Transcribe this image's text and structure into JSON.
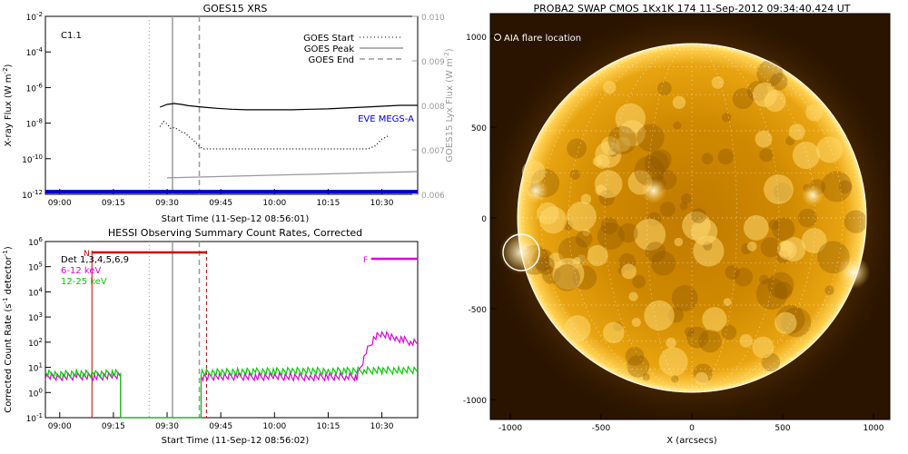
{
  "goes": {
    "title": "GOES15 XRS",
    "flare_class": "C1.1",
    "xlabel": "Start Time (11-Sep-12 08:56:01)",
    "ylabel": "X-ray Flux (W m",
    "ylabel_sup": "-2",
    "ylabel_end": ")",
    "y2label": "GOES15 Lyx Flux (W m",
    "y2label_sup": "-2",
    "y2label_end": ")",
    "legend": [
      {
        "label": "GOES Start",
        "style": "dotted"
      },
      {
        "label": "GOES Peak",
        "style": "solid"
      },
      {
        "label": "GOES End",
        "style": "dashed"
      }
    ],
    "eve_label": "EVE MEGS-A",
    "eve_color": "#0000cc"
  },
  "hessi": {
    "title": "HESSI Observing Summary Count Rates, Corrected",
    "xlabel": "Start Time (11-Sep-12 08:56:02)",
    "ylabel": "Corrected Count Rate (s",
    "ylabel_sup": "-1",
    "ylabel_mid": " detector",
    "ylabel_sup2": "-1",
    "ylabel_end": ")",
    "legend": [
      {
        "label": "Det 1,3,4,5,6,9",
        "color": "#000000"
      },
      {
        "label": "6-12 keV",
        "color": "#dd00dd"
      },
      {
        "label": "12-25 keV",
        "color": "#00cc00"
      }
    ],
    "n_label": "N",
    "f_label": "F",
    "night_color": "#cc0000",
    "flare_flag_color": "#dd00dd"
  },
  "swap": {
    "title": "PROBA2 SWAP CMOS 1Kx1K 174 11-Sep-2012 09:34:40.424 UT",
    "aia_label": "AIA flare location",
    "xlabel": "X (arcsecs)",
    "x_ticks": [
      "-1000",
      "-500",
      "0",
      "500",
      "1000"
    ],
    "y_ticks": [
      "1000",
      "500",
      "0",
      "-500",
      "-1000"
    ]
  },
  "chart_data": [
    {
      "type": "line",
      "title": "GOES15 XRS",
      "xlabel": "Start Time (11-Sep-12 08:56:01)",
      "ylabel": "X-ray Flux (W m^-2)",
      "y2label": "GOES15 Lyx Flux (W m^-2)",
      "x_ticks": [
        "09:00",
        "09:15",
        "09:30",
        "09:45",
        "10:00",
        "10:15",
        "10:30"
      ],
      "xlim_min": [
        -4,
        100
      ],
      "y_ticks": [
        "10^-12",
        "10^-10",
        "10^-8",
        "10^-6",
        "10^-4",
        "10^-2"
      ],
      "ylim_log10": [
        -12,
        -2
      ],
      "y2_ticks": [
        "0.006",
        "0.007",
        "0.008",
        "0.009",
        "0.010"
      ],
      "y2lim": [
        0.006,
        0.01
      ],
      "annotation": "C1.1",
      "vlines_min": {
        "start": 25,
        "peak": 31.5,
        "end": 39
      },
      "series": [
        {
          "name": "",
          "axis": "left",
          "style": "solid",
          "color": "#000000",
          "x": [
            28,
            30,
            32,
            34,
            36,
            40,
            44,
            48,
            52,
            56,
            60,
            65,
            70,
            75,
            80,
            85,
            90,
            95,
            100
          ],
          "y": [
            -7.1,
            -6.95,
            -6.9,
            -6.95,
            -7.02,
            -7.1,
            -7.17,
            -7.22,
            -7.25,
            -7.25,
            -7.25,
            -7.25,
            -7.22,
            -7.2,
            -7.15,
            -7.1,
            -7.05,
            -7.0,
            -7.0
          ]
        },
        {
          "name": "",
          "axis": "left",
          "style": "dotted",
          "color": "#000000",
          "x": [
            28,
            29,
            30,
            31,
            32,
            33,
            34,
            35,
            36,
            37,
            38,
            39,
            40,
            45,
            50,
            60,
            70,
            80,
            86,
            88,
            90,
            92
          ],
          "y": [
            -8.2,
            -7.9,
            -8.05,
            -8.3,
            -8.25,
            -8.35,
            -8.5,
            -8.55,
            -8.75,
            -8.9,
            -9.1,
            -9.3,
            -9.45,
            -9.45,
            -9.45,
            -9.45,
            -9.45,
            -9.45,
            -9.45,
            -9.3,
            -8.9,
            -8.7
          ]
        },
        {
          "name": "",
          "axis": "right",
          "style": "solid",
          "color": "#999999",
          "x": [
            30,
            35,
            40,
            45,
            50,
            55,
            60,
            65,
            70,
            75,
            80,
            85,
            90,
            95,
            100
          ],
          "y": [
            0.00637,
            0.00638,
            0.00639,
            0.0064,
            0.00641,
            0.00642,
            0.00643,
            0.00644,
            0.00645,
            0.00646,
            0.00647,
            0.00648,
            0.00649,
            0.0065,
            0.00651
          ]
        },
        {
          "name": "EVE MEGS-A",
          "axis": "left",
          "style": "solid",
          "color": "#0000cc",
          "x": [
            -4,
            100
          ],
          "y": [
            -11.85,
            -11.85
          ]
        }
      ]
    },
    {
      "type": "line",
      "title": "HESSI Observing Summary Count Rates, Corrected",
      "xlabel": "Start Time (11-Sep-12 08:56:02)",
      "ylabel": "Corrected Count Rate (s^-1 detector^-1)",
      "x_ticks": [
        "09:00",
        "09:15",
        "09:30",
        "09:45",
        "10:00",
        "10:15",
        "10:30"
      ],
      "xlim_min": [
        -4,
        100
      ],
      "y_ticks": [
        "10^-1",
        "10^0",
        "10^1",
        "10^2",
        "10^3",
        "10^4",
        "10^5",
        "10^6"
      ],
      "ylim_log10": [
        -1,
        6
      ],
      "vlines_min": {
        "night_start": 9,
        "start": 25,
        "peak": 31.5,
        "end": 39,
        "night_end": 41
      },
      "night_bar_min": [
        9,
        41
      ],
      "flare_bar_min": [
        87,
        100
      ],
      "series": [
        {
          "name": "6-12 keV",
          "color": "#dd00dd",
          "x": [
            -4,
            0,
            5,
            10,
            15,
            17,
            17,
            39.5,
            39.5,
            40,
            45,
            50,
            55,
            60,
            65,
            70,
            75,
            80,
            83,
            84,
            86,
            88,
            90,
            92,
            94,
            96,
            98,
            100
          ],
          "y": [
            0.65,
            0.62,
            0.64,
            0.63,
            0.65,
            0.65,
            -1,
            -1,
            0.6,
            0.62,
            0.64,
            0.63,
            0.62,
            0.63,
            0.62,
            0.61,
            0.62,
            0.63,
            0.62,
            1.0,
            1.7,
            2.2,
            2.3,
            2.25,
            2.15,
            2.1,
            2.0,
            1.95
          ]
        },
        {
          "name": "12-25 keV",
          "color": "#00cc00",
          "x": [
            -4,
            0,
            5,
            10,
            15,
            17,
            17,
            39.5,
            39.5,
            40,
            45,
            50,
            55,
            60,
            65,
            70,
            75,
            80,
            85,
            90,
            95,
            100
          ],
          "y": [
            0.75,
            0.72,
            0.76,
            0.73,
            0.77,
            0.75,
            -1,
            -1,
            0.75,
            0.78,
            0.8,
            0.82,
            0.83,
            0.84,
            0.85,
            0.86,
            0.85,
            0.86,
            0.87,
            0.88,
            0.88,
            0.9
          ]
        }
      ]
    }
  ]
}
